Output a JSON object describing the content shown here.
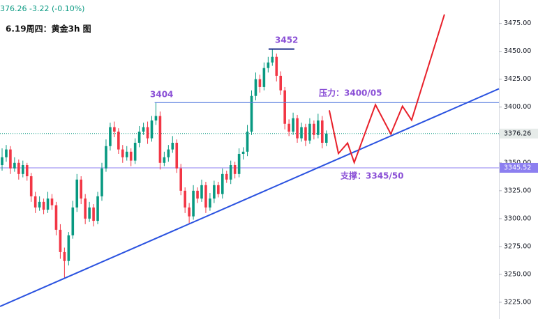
{
  "chart_data": {
    "type": "candlestick",
    "header": "376.26 -3.22 (-0.10%)",
    "title": "6.19周四：黄金3h 图",
    "up_color": "#089981",
    "down_color": "#f23645",
    "xlim": [
      0,
      120
    ],
    "ylim": [
      3210,
      3496
    ],
    "yticks": [
      {
        "value": 3225,
        "label": "3225.00"
      },
      {
        "value": 3250,
        "label": "3250.00"
      },
      {
        "value": 3275,
        "label": "3275.00"
      },
      {
        "value": 3300,
        "label": "3300.00"
      },
      {
        "value": 3325,
        "label": "3325.00"
      },
      {
        "value": 3350,
        "label": "3350.00"
      },
      {
        "value": 3375,
        "label": "3375.00"
      },
      {
        "value": 3400,
        "label": "3400.00"
      },
      {
        "value": 3425,
        "label": "3425.00"
      },
      {
        "value": 3450,
        "label": "3450.00"
      },
      {
        "value": 3475,
        "label": "3475.00"
      }
    ],
    "open": [
      3348,
      3355,
      3362,
      3345,
      3350,
      3340,
      3348,
      3338,
      3320,
      3310,
      3315,
      3308,
      3318,
      3312,
      3290,
      3270,
      3262,
      3285,
      3310,
      3335,
      3318,
      3300,
      3310,
      3298,
      3320,
      3345,
      3365,
      3382,
      3378,
      3362,
      3355,
      3360,
      3352,
      3368,
      3378,
      3382,
      3372,
      3388,
      3392,
      3350,
      3355,
      3362,
      3368,
      3345,
      3325,
      3310,
      3302,
      3325,
      3318,
      3330,
      3310,
      3318,
      3330,
      3322,
      3340,
      3335,
      3348,
      3340,
      3358,
      3360,
      3378,
      3410,
      3425,
      3418,
      3435,
      3440,
      3445,
      3428,
      3415,
      3385,
      3378,
      3390,
      3372,
      3382,
      3370,
      3385,
      3375,
      3388,
      3368
    ],
    "high": [
      3363,
      3366,
      3365,
      3355,
      3353,
      3352,
      3350,
      3341,
      3324,
      3320,
      3318,
      3324,
      3322,
      3315,
      3295,
      3274,
      3288,
      3316,
      3340,
      3338,
      3322,
      3315,
      3313,
      3324,
      3350,
      3371,
      3386,
      3387,
      3381,
      3366,
      3365,
      3363,
      3372,
      3383,
      3386,
      3387,
      3392,
      3404,
      3396,
      3360,
      3366,
      3374,
      3371,
      3349,
      3328,
      3314,
      3330,
      3328,
      3335,
      3333,
      3323,
      3334,
      3333,
      3345,
      3343,
      3352,
      3351,
      3363,
      3364,
      3384,
      3415,
      3431,
      3429,
      3440,
      3445,
      3452,
      3448,
      3432,
      3418,
      3389,
      3395,
      3393,
      3386,
      3385,
      3390,
      3388,
      3394,
      3392,
      3379
    ],
    "low": [
      3343,
      3351,
      3340,
      3342,
      3335,
      3337,
      3334,
      3315,
      3305,
      3307,
      3304,
      3305,
      3308,
      3285,
      3264,
      3247,
      3258,
      3282,
      3306,
      3313,
      3295,
      3297,
      3293,
      3295,
      3316,
      3342,
      3361,
      3373,
      3358,
      3350,
      3352,
      3347,
      3349,
      3364,
      3375,
      3367,
      3369,
      3384,
      3344,
      3347,
      3351,
      3359,
      3341,
      3321,
      3305,
      3295,
      3299,
      3314,
      3315,
      3305,
      3307,
      3314,
      3319,
      3318,
      3332,
      3331,
      3336,
      3337,
      3353,
      3356,
      3375,
      3406,
      3413,
      3415,
      3431,
      3437,
      3423,
      3411,
      3380,
      3374,
      3375,
      3368,
      3369,
      3365,
      3367,
      3371,
      3372,
      3363,
      3365
    ],
    "close": [
      3355,
      3362,
      3345,
      3350,
      3340,
      3348,
      3338,
      3320,
      3310,
      3315,
      3308,
      3318,
      3312,
      3290,
      3270,
      3262,
      3285,
      3310,
      3335,
      3318,
      3300,
      3310,
      3298,
      3320,
      3345,
      3365,
      3382,
      3378,
      3362,
      3355,
      3360,
      3352,
      3368,
      3378,
      3382,
      3372,
      3388,
      3392,
      3350,
      3355,
      3362,
      3368,
      3345,
      3325,
      3310,
      3302,
      3325,
      3318,
      3330,
      3310,
      3318,
      3330,
      3322,
      3340,
      3335,
      3348,
      3340,
      3358,
      3360,
      3378,
      3410,
      3425,
      3418,
      3435,
      3440,
      3445,
      3428,
      3415,
      3385,
      3378,
      3390,
      3372,
      3382,
      3370,
      3385,
      3375,
      3388,
      3368,
      3376.26
    ],
    "price_lines": [
      {
        "value": 3376.26,
        "label": "3376.26",
        "color": "#089981",
        "style": "dotted"
      },
      {
        "value": 3345.52,
        "label": "3345.52",
        "color": "#8c7ff0",
        "style": "solid"
      }
    ],
    "overlays": [
      {
        "x": [
          37.2,
          120
        ],
        "values": [
          3404,
          3404
        ],
        "color": "#5c7fe0"
      },
      {
        "x": [
          64.6,
          70.8
        ],
        "values": [
          3452,
          3452
        ],
        "color": "#1a2a8a"
      },
      {
        "x": [
          0,
          120
        ],
        "values": [
          3221.3,
          3416.4
        ],
        "color": "#2a52e0"
      },
      {
        "x": [
          79.2,
          81.4,
          83.6,
          85.2,
          90.3,
          94.0,
          96.8,
          99.0,
          106.9
        ],
        "values": [
          3397.1,
          3358.4,
          3367.8,
          3350.3,
          3402.1,
          3375.9,
          3400.8,
          3388.3,
          3483.1
        ],
        "color": "#e8202a"
      }
    ],
    "annotations": [
      {
        "text": "3404",
        "color": "#8a4fd6"
      },
      {
        "text": "3452",
        "color": "#8a4fd6"
      },
      {
        "text": "压力：3400/05",
        "color": "#8a4fd6"
      },
      {
        "text": "支撑：3345/50",
        "color": "#8a4fd6"
      }
    ]
  }
}
